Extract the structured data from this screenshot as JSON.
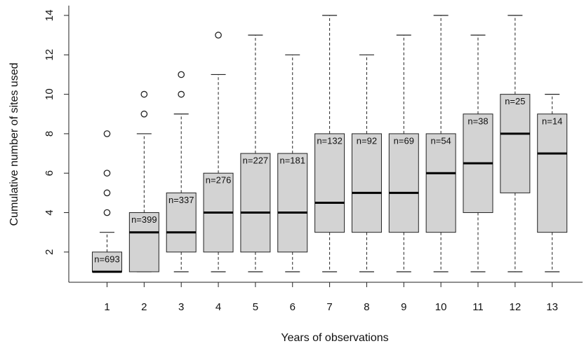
{
  "chart_data": {
    "type": "box",
    "xlabel": "Years of observations",
    "ylabel": "Cumulative number of sites used",
    "ylim": [
      0.5,
      14.3
    ],
    "yticks": [
      2,
      4,
      6,
      8,
      10,
      12,
      14
    ],
    "grid": false,
    "box_fill": "#d3d3d3",
    "categories": [
      "1",
      "2",
      "3",
      "4",
      "5",
      "6",
      "7",
      "8",
      "9",
      "10",
      "11",
      "12",
      "13"
    ],
    "boxes": [
      {
        "x": "1",
        "n_label": "n=693",
        "whisker_low": 1,
        "q1": 1,
        "median": 1,
        "q3": 2,
        "whisker_high": 3,
        "outliers": [
          4,
          5,
          6,
          8
        ]
      },
      {
        "x": "2",
        "n_label": "n=399",
        "whisker_low": 1,
        "q1": 1,
        "median": 3,
        "q3": 4,
        "whisker_high": 8,
        "outliers": [
          9,
          10
        ]
      },
      {
        "x": "3",
        "n_label": "n=337",
        "whisker_low": 1,
        "q1": 2,
        "median": 3,
        "q3": 5,
        "whisker_high": 9,
        "outliers": [
          10,
          11
        ]
      },
      {
        "x": "4",
        "n_label": "n=276",
        "whisker_low": 1,
        "q1": 2,
        "median": 4,
        "q3": 6,
        "whisker_high": 11,
        "outliers": [
          13
        ]
      },
      {
        "x": "5",
        "n_label": "n=227",
        "whisker_low": 1,
        "q1": 2,
        "median": 4,
        "q3": 7,
        "whisker_high": 13,
        "outliers": []
      },
      {
        "x": "6",
        "n_label": "n=181",
        "whisker_low": 1,
        "q1": 2,
        "median": 4,
        "q3": 7,
        "whisker_high": 12,
        "outliers": []
      },
      {
        "x": "7",
        "n_label": "n=132",
        "whisker_low": 1,
        "q1": 3,
        "median": 4.5,
        "q3": 8,
        "whisker_high": 14,
        "outliers": []
      },
      {
        "x": "8",
        "n_label": "n=92",
        "whisker_low": 1,
        "q1": 3,
        "median": 5,
        "q3": 8,
        "whisker_high": 12,
        "outliers": []
      },
      {
        "x": "9",
        "n_label": "n=69",
        "whisker_low": 1,
        "q1": 3,
        "median": 5,
        "q3": 8,
        "whisker_high": 13,
        "outliers": []
      },
      {
        "x": "10",
        "n_label": "n=54",
        "whisker_low": 1,
        "q1": 3,
        "median": 6,
        "q3": 8,
        "whisker_high": 14,
        "outliers": []
      },
      {
        "x": "11",
        "n_label": "n=38",
        "whisker_low": 1,
        "q1": 4,
        "median": 6.5,
        "q3": 9,
        "whisker_high": 13,
        "outliers": []
      },
      {
        "x": "12",
        "n_label": "n=25",
        "whisker_low": 1,
        "q1": 5,
        "median": 8,
        "q3": 10,
        "whisker_high": 14,
        "outliers": []
      },
      {
        "x": "13",
        "n_label": "n=14",
        "whisker_low": 1,
        "q1": 3,
        "median": 7,
        "q3": 9,
        "whisker_high": 10,
        "outliers": []
      }
    ]
  }
}
